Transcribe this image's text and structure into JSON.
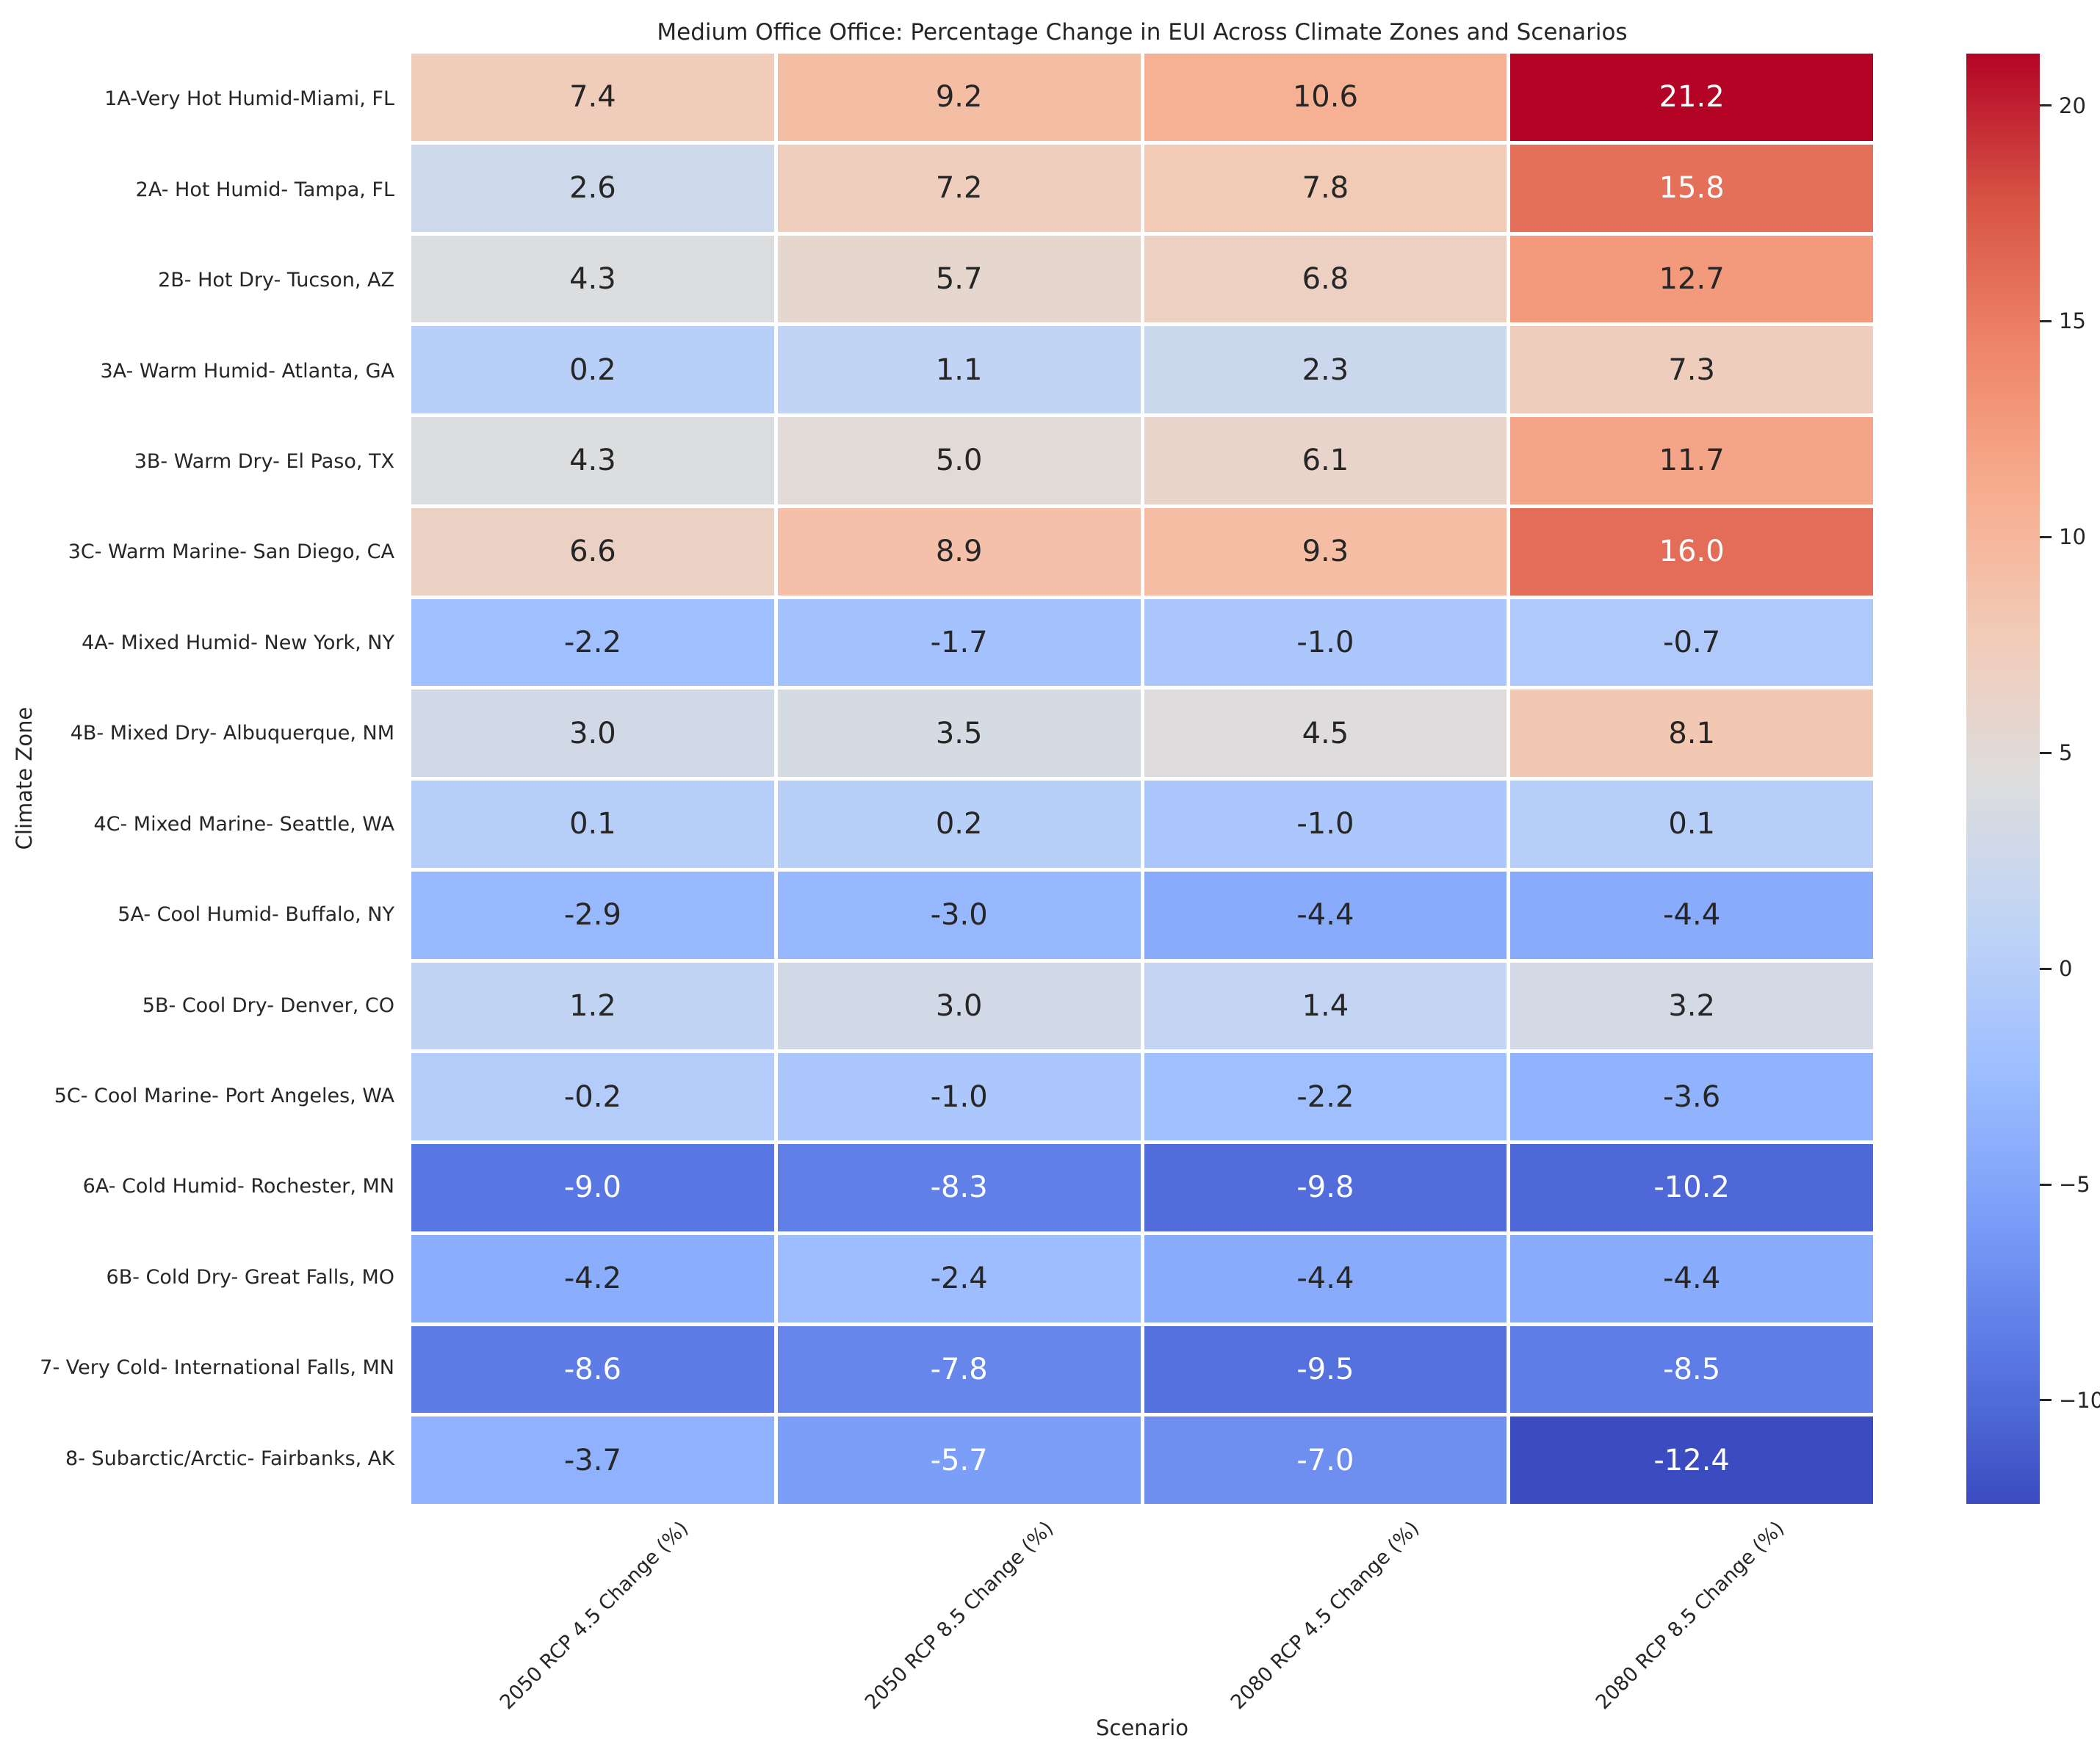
{
  "title": "Medium Office Office: Percentage Change in EUI Across Climate Zones and Scenarios",
  "chart_data": {
    "type": "heatmap",
    "title": "Medium Office Office: Percentage Change in EUI Across Climate Zones and Scenarios",
    "xlabel": "Scenario",
    "ylabel": "Climate Zone",
    "columns": [
      "2050 RCP 4.5 Change (%)",
      "2050 RCP 8.5 Change (%)",
      "2080 RCP 4.5 Change (%)",
      "2080 RCP 8.5 Change (%)"
    ],
    "rows": [
      "1A-Very Hot Humid-Miami, FL",
      "2A- Hot Humid- Tampa, FL",
      "2B- Hot Dry- Tucson, AZ",
      "3A- Warm Humid- Atlanta, GA",
      "3B- Warm Dry- El Paso, TX",
      "3C- Warm Marine- San Diego, CA",
      "4A- Mixed Humid- New York, NY",
      "4B- Mixed Dry- Albuquerque, NM",
      "4C- Mixed Marine- Seattle, WA",
      "5A- Cool Humid- Buffalo, NY",
      "5B- Cool Dry- Denver, CO",
      "5C- Cool Marine- Port Angeles, WA",
      "6A- Cold Humid- Rochester, MN",
      "6B- Cold Dry- Great Falls, MO",
      "7- Very Cold- International Falls, MN",
      "8- Subarctic/Arctic- Fairbanks, AK"
    ],
    "values": [
      [
        7.4,
        9.2,
        10.6,
        21.2
      ],
      [
        2.6,
        7.2,
        7.8,
        15.8
      ],
      [
        4.3,
        5.7,
        6.8,
        12.7
      ],
      [
        0.2,
        1.1,
        2.3,
        7.3
      ],
      [
        4.3,
        5.0,
        6.1,
        11.7
      ],
      [
        6.6,
        8.9,
        9.3,
        16.0
      ],
      [
        -2.2,
        -1.7,
        -1.0,
        -0.7
      ],
      [
        3.0,
        3.5,
        4.5,
        8.1
      ],
      [
        0.1,
        0.2,
        -1.0,
        0.1
      ],
      [
        -2.9,
        -3.0,
        -4.4,
        -4.4
      ],
      [
        1.2,
        3.0,
        1.4,
        3.2
      ],
      [
        -0.2,
        -1.0,
        -2.2,
        -3.6
      ],
      [
        -9.0,
        -8.3,
        -9.8,
        -10.2
      ],
      [
        -4.2,
        -2.4,
        -4.4,
        -4.4
      ],
      [
        -8.6,
        -7.8,
        -9.5,
        -8.5
      ],
      [
        -3.7,
        -5.7,
        -7.0,
        -12.4
      ]
    ],
    "value_decimals": 1,
    "colormap": "coolwarm",
    "vmin": -12.4,
    "vmax": 21.2,
    "colorbar_ticks": [
      20,
      15,
      10,
      5,
      0,
      -5,
      -10
    ],
    "legend_position": "right-colorbar",
    "grid": false
  },
  "colors": {
    "background": "#ffffff",
    "text": "#262626",
    "annotation_light": "#ffffff",
    "gridline": "#ffffff",
    "colormap_low": "#3b4cc0",
    "colormap_mid": "#dddddd",
    "colormap_high": "#b40426"
  }
}
